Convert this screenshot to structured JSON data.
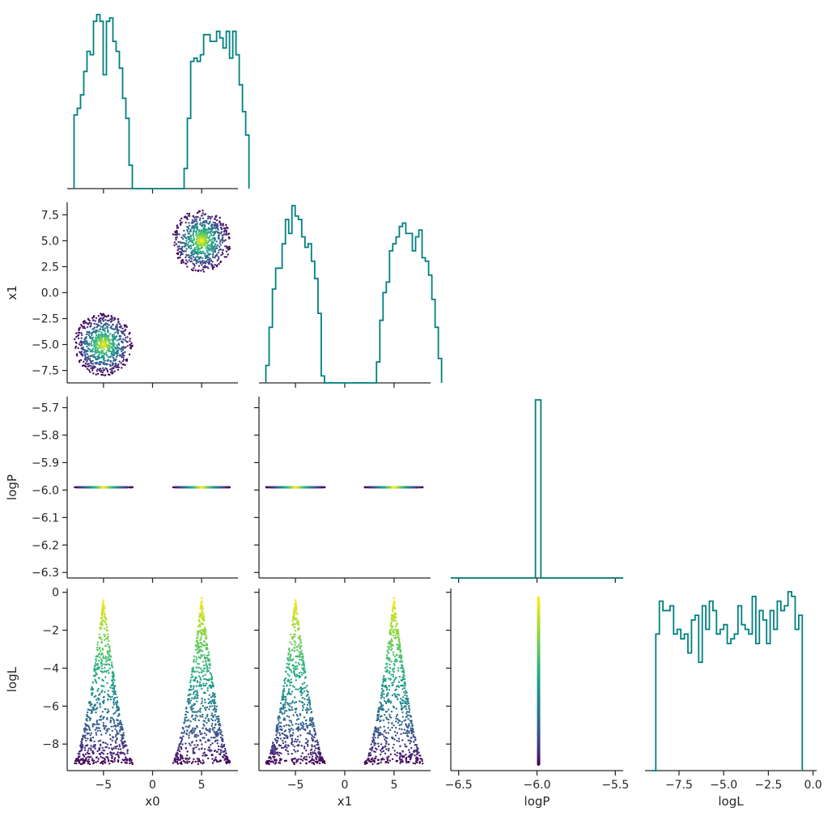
{
  "chart_data": {
    "type": "corner-plot",
    "parameters": [
      "x0",
      "x1",
      "logP",
      "logL"
    ],
    "colors": {
      "histogram": "#008080",
      "axis": "#262626",
      "colormap": "viridis"
    },
    "grid": false,
    "seed": 12345,
    "n_points": 1500,
    "modes": [
      {
        "center": [
          -5,
          -5
        ],
        "radius": 3.0
      },
      {
        "center": [
          5,
          5
        ],
        "radius": 3.0
      }
    ],
    "logP_value": -5.99,
    "logL_range": [
      -9.0,
      -0.3
    ],
    "axes": {
      "x0": {
        "range": [
          -8.7,
          8.7
        ],
        "ticks": [
          -5,
          0,
          5
        ],
        "tick_labels": [
          "−5",
          "0",
          "5"
        ]
      },
      "x1": {
        "range": [
          -8.7,
          8.7
        ],
        "ticks": [
          -7.5,
          -5.0,
          -2.5,
          0.0,
          2.5,
          5.0,
          7.5
        ],
        "tick_labels": [
          "−7.5",
          "−5.0",
          "−2.5",
          "0.0",
          "2.5",
          "5.0",
          "7.5"
        ],
        "x_ticks": [
          -5,
          0,
          5
        ],
        "x_tick_labels": [
          "−5",
          "0",
          "5"
        ]
      },
      "logP": {
        "range": [
          -6.55,
          -5.45
        ],
        "y_range": [
          -6.32,
          -5.66
        ],
        "ticks": [
          -6.5,
          -6.0,
          -5.5
        ],
        "tick_labels": [
          "−6.5",
          "−6.0",
          "−5.5"
        ],
        "y_ticks": [
          -6.3,
          -6.2,
          -6.1,
          -6.0,
          -5.9,
          -5.8,
          -5.7
        ],
        "y_tick_labels": [
          "−6.3",
          "−6.2",
          "−6.1",
          "−6.0",
          "−5.9",
          "−5.8",
          "−5.7"
        ]
      },
      "logL": {
        "range": [
          -9.4,
          0.2
        ],
        "ticks": [
          -7.5,
          -5.0,
          -2.5,
          0.0
        ],
        "tick_labels": [
          "−7.5",
          "−5.0",
          "−2.5",
          "0.0"
        ],
        "y_ticks": [
          -8,
          -6,
          -4,
          -2,
          0
        ],
        "y_tick_labels": [
          "−8",
          "−6",
          "−4",
          "−2",
          "0"
        ]
      }
    },
    "histograms": {
      "x0": {
        "bin_start": -8.0,
        "bin_width": 0.33,
        "counts": [
          22,
          24,
          28,
          35,
          41,
          40,
          50,
          52,
          50,
          34,
          50,
          51,
          44,
          41,
          36,
          27,
          21,
          7,
          0,
          0,
          0,
          0,
          0,
          0,
          0,
          0,
          0,
          0,
          0,
          0,
          0,
          0,
          0,
          0,
          6,
          21,
          38,
          39,
          38,
          40,
          46,
          46,
          44,
          44,
          47,
          45,
          42,
          47,
          39,
          47,
          40,
          31,
          23,
          16
        ]
      },
      "x1": {
        "bin_start": -8.0,
        "bin_width": 0.33,
        "counts": [
          5,
          16,
          27,
          33,
          33,
          40,
          47,
          43,
          51,
          48,
          47,
          42,
          39,
          40,
          35,
          30,
          20,
          2,
          0,
          0,
          0,
          0,
          0,
          0,
          0,
          0,
          0,
          0,
          0,
          0,
          0,
          0,
          0,
          0,
          6,
          18,
          26,
          29,
          38,
          40,
          42,
          45,
          46,
          43,
          43,
          38,
          42,
          44,
          36,
          35,
          31,
          24,
          16,
          7
        ]
      },
      "logP": {
        "bins": [
          -6.55,
          -6.01,
          -5.975,
          -5.45
        ],
        "counts": [
          0,
          1500,
          0
        ]
      },
      "logL": {
        "bin_start": -9.0,
        "bin_width": 0.2,
        "counts": [
          0,
          29,
          36,
          34,
          34,
          35,
          29,
          30,
          28,
          29,
          25,
          32,
          33,
          23,
          35,
          30,
          36,
          34,
          29,
          30,
          31,
          27,
          28,
          29,
          35,
          31,
          30,
          29,
          37,
          27,
          34,
          32,
          27,
          34,
          30,
          36,
          34,
          35,
          38,
          37,
          30,
          33
        ]
      }
    }
  }
}
